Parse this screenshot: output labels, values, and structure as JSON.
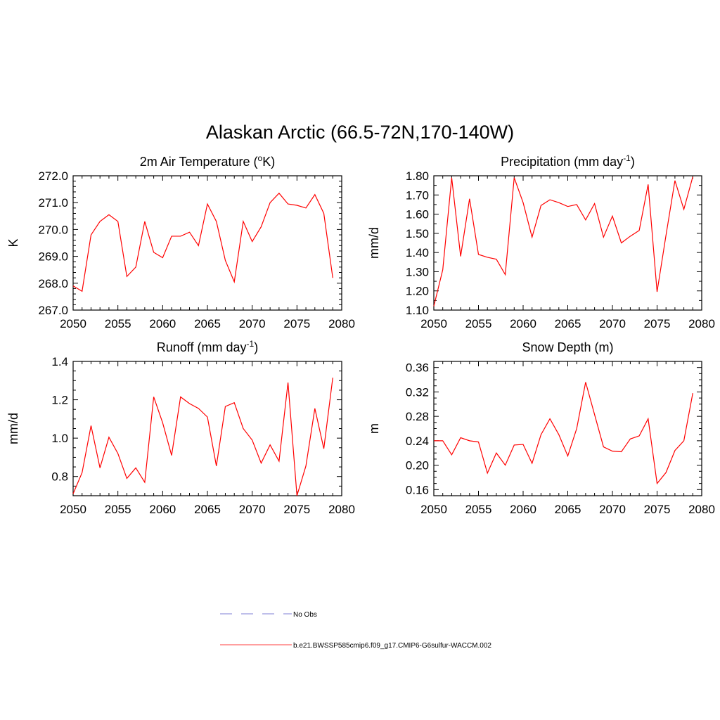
{
  "page_title": "Alaskan Arctic (66.5-72N,170-140W)",
  "legend": {
    "entries": [
      {
        "label": "No Obs",
        "color": "#9999dd",
        "dash": true
      },
      {
        "label": "b.e21.BWSSP585cmip6.f09_g17.CMIP6-G6sulfur-WACCM.002",
        "color": "#ff6666",
        "dash": false
      }
    ]
  },
  "chart_data": [
    {
      "type": "line",
      "title": "2m Air Temperature (",
      "title_sup": "o",
      "title_after": "K)",
      "ylabel": "K",
      "xlim": [
        2050,
        2080
      ],
      "ylim": [
        267.0,
        272.0
      ],
      "xticks": [
        2050,
        2055,
        2060,
        2065,
        2070,
        2075,
        2080
      ],
      "yticks": [
        267.0,
        268.0,
        269.0,
        270.0,
        271.0,
        272.0
      ],
      "ytick_decimals": 1,
      "minor_y": 5,
      "series": [
        {
          "color": "#ff0000",
          "x": [
            2050,
            2051,
            2052,
            2053,
            2054,
            2055,
            2056,
            2057,
            2058,
            2059,
            2060,
            2061,
            2062,
            2063,
            2064,
            2065,
            2066,
            2067,
            2068,
            2069,
            2070,
            2071,
            2072,
            2073,
            2074,
            2075,
            2076,
            2077,
            2078,
            2079
          ],
          "y": [
            267.9,
            267.7,
            269.8,
            270.3,
            270.55,
            270.3,
            268.25,
            268.6,
            270.3,
            269.15,
            268.95,
            269.75,
            269.75,
            269.9,
            269.4,
            270.95,
            270.3,
            268.85,
            268.05,
            270.3,
            269.55,
            270.1,
            271.0,
            271.35,
            270.95,
            270.9,
            270.8,
            271.3,
            270.6,
            268.2
          ]
        }
      ]
    },
    {
      "type": "line",
      "title": "Precipitation (mm day",
      "title_sup": "-1",
      "title_after": ")",
      "ylabel": "mm/d",
      "xlim": [
        2050,
        2080
      ],
      "ylim": [
        1.1,
        1.8
      ],
      "xticks": [
        2050,
        2055,
        2060,
        2065,
        2070,
        2075,
        2080
      ],
      "yticks": [
        1.1,
        1.2,
        1.3,
        1.4,
        1.5,
        1.6,
        1.7,
        1.8
      ],
      "ytick_decimals": 2,
      "minor_y": 2,
      "series": [
        {
          "color": "#ff0000",
          "x": [
            2050,
            2051,
            2052,
            2053,
            2054,
            2055,
            2056,
            2057,
            2058,
            2059,
            2060,
            2061,
            2062,
            2063,
            2064,
            2065,
            2066,
            2067,
            2068,
            2069,
            2070,
            2071,
            2072,
            2073,
            2074,
            2075,
            2076,
            2077,
            2078,
            2079
          ],
          "y": [
            1.12,
            1.31,
            1.79,
            1.38,
            1.68,
            1.39,
            1.375,
            1.365,
            1.285,
            1.79,
            1.66,
            1.48,
            1.645,
            1.675,
            1.66,
            1.64,
            1.65,
            1.57,
            1.655,
            1.48,
            1.59,
            1.45,
            1.485,
            1.515,
            1.755,
            1.195,
            1.49,
            1.775,
            1.625,
            1.795
          ]
        }
      ]
    },
    {
      "type": "line",
      "title": "Runoff (mm day",
      "title_sup": "-1",
      "title_after": ")",
      "ylabel": "mm/d",
      "xlim": [
        2050,
        2080
      ],
      "ylim": [
        0.7,
        1.4
      ],
      "xticks": [
        2050,
        2055,
        2060,
        2065,
        2070,
        2075,
        2080
      ],
      "yticks": [
        0.8,
        1.0,
        1.2,
        1.4
      ],
      "ytick_decimals": 1,
      "minor_y": 4,
      "series": [
        {
          "color": "#ff0000",
          "x": [
            2050,
            2051,
            2052,
            2053,
            2054,
            2055,
            2056,
            2057,
            2058,
            2059,
            2060,
            2061,
            2062,
            2063,
            2064,
            2065,
            2066,
            2067,
            2068,
            2069,
            2070,
            2071,
            2072,
            2073,
            2074,
            2075,
            2076,
            2077,
            2078,
            2079
          ],
          "y": [
            0.71,
            0.82,
            1.065,
            0.845,
            1.005,
            0.92,
            0.79,
            0.845,
            0.77,
            1.215,
            1.08,
            0.91,
            1.215,
            1.18,
            1.155,
            1.11,
            0.855,
            1.165,
            1.185,
            1.05,
            0.99,
            0.87,
            0.965,
            0.88,
            1.29,
            0.7,
            0.855,
            1.155,
            0.945,
            1.315
          ]
        }
      ]
    },
    {
      "type": "line",
      "title": "Snow Depth (m)",
      "title_sup": "",
      "title_after": "",
      "ylabel": "m",
      "xlim": [
        2050,
        2080
      ],
      "ylim": [
        0.15,
        0.37
      ],
      "xticks": [
        2050,
        2055,
        2060,
        2065,
        2070,
        2075,
        2080
      ],
      "yticks": [
        0.16,
        0.2,
        0.24,
        0.28,
        0.32,
        0.36
      ],
      "ytick_decimals": 2,
      "minor_y": 4,
      "series": [
        {
          "color": "#ff0000",
          "x": [
            2050,
            2051,
            2052,
            2053,
            2054,
            2055,
            2056,
            2057,
            2058,
            2059,
            2060,
            2061,
            2062,
            2063,
            2064,
            2065,
            2066,
            2067,
            2068,
            2069,
            2070,
            2071,
            2072,
            2073,
            2074,
            2075,
            2076,
            2077,
            2078,
            2079
          ],
          "y": [
            0.24,
            0.24,
            0.217,
            0.245,
            0.24,
            0.238,
            0.187,
            0.22,
            0.2,
            0.233,
            0.234,
            0.203,
            0.25,
            0.276,
            0.25,
            0.215,
            0.26,
            0.336,
            0.283,
            0.23,
            0.223,
            0.222,
            0.243,
            0.248,
            0.276,
            0.17,
            0.188,
            0.224,
            0.24,
            0.318
          ]
        }
      ]
    }
  ]
}
